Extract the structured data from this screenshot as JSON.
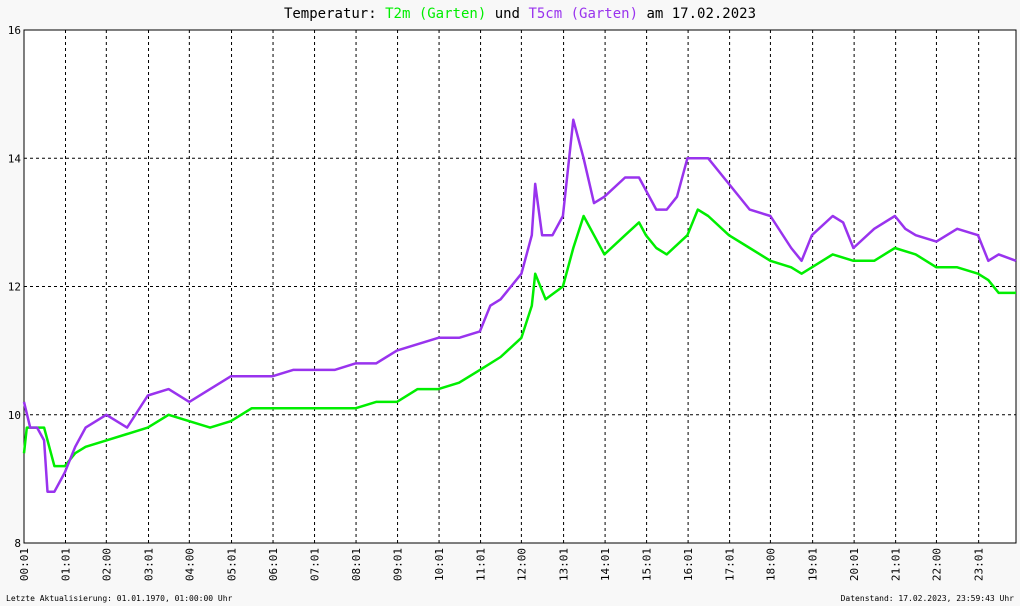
{
  "chart_data": {
    "type": "line",
    "title": [
      "Temperatur:",
      "und",
      "am 17.02.2023"
    ],
    "footer_left": "Letzte Aktualisierung: 01.01.1970, 01:00:00 Uhr",
    "footer_right": "Datenstand: 17.02.2023, 23:59:43 Uhr",
    "xlim": [
      "00:01",
      "23:55"
    ],
    "xticks": [
      "00:01",
      "01:01",
      "02:00",
      "03:01",
      "04:00",
      "05:01",
      "06:01",
      "07:01",
      "08:01",
      "09:01",
      "10:01",
      "11:01",
      "12:00",
      "13:01",
      "14:01",
      "15:01",
      "16:01",
      "17:01",
      "18:00",
      "19:01",
      "20:01",
      "21:01",
      "22:00",
      "23:01"
    ],
    "ylim": [
      8,
      16
    ],
    "yticks": [
      8,
      10,
      12,
      14,
      16
    ],
    "grid": true,
    "series": [
      {
        "name": "T2m (Garten)",
        "color": "#00ee00",
        "x": [
          "00:01",
          "00:05",
          "00:15",
          "00:30",
          "00:45",
          "01:00",
          "01:15",
          "01:30",
          "02:00",
          "02:30",
          "03:00",
          "03:30",
          "04:00",
          "04:30",
          "05:00",
          "05:30",
          "06:00",
          "06:30",
          "07:00",
          "07:30",
          "08:00",
          "08:30",
          "09:00",
          "09:30",
          "10:00",
          "10:30",
          "11:00",
          "11:30",
          "12:00",
          "12:15",
          "12:20",
          "12:35",
          "13:00",
          "13:15",
          "13:30",
          "13:45",
          "14:00",
          "14:30",
          "14:50",
          "15:00",
          "15:15",
          "15:30",
          "16:00",
          "16:15",
          "16:30",
          "17:00",
          "17:30",
          "18:00",
          "18:30",
          "18:45",
          "19:00",
          "19:30",
          "20:00",
          "20:30",
          "21:00",
          "21:30",
          "22:00",
          "22:30",
          "23:00",
          "23:15",
          "23:30",
          "23:55"
        ],
        "values": [
          9.4,
          9.8,
          9.8,
          9.8,
          9.2,
          9.2,
          9.4,
          9.5,
          9.6,
          9.7,
          9.8,
          10.0,
          9.9,
          9.8,
          9.9,
          10.1,
          10.1,
          10.1,
          10.1,
          10.1,
          10.1,
          10.2,
          10.2,
          10.4,
          10.4,
          10.5,
          10.7,
          10.9,
          11.2,
          11.7,
          12.2,
          11.8,
          12.0,
          12.6,
          13.1,
          12.8,
          12.5,
          12.8,
          13.0,
          12.8,
          12.6,
          12.5,
          12.8,
          13.2,
          13.1,
          12.8,
          12.6,
          12.4,
          12.3,
          12.2,
          12.3,
          12.5,
          12.4,
          12.4,
          12.6,
          12.5,
          12.3,
          12.3,
          12.2,
          12.1,
          11.9,
          11.9
        ]
      },
      {
        "name": "T5cm (Garten)",
        "color": "#9933ee",
        "x": [
          "00:01",
          "00:10",
          "00:20",
          "00:30",
          "00:35",
          "00:45",
          "01:00",
          "01:15",
          "01:30",
          "02:00",
          "02:30",
          "03:00",
          "03:30",
          "04:00",
          "04:30",
          "05:00",
          "05:30",
          "06:00",
          "06:30",
          "07:00",
          "07:30",
          "08:00",
          "08:30",
          "09:00",
          "09:30",
          "10:00",
          "10:30",
          "11:00",
          "11:15",
          "11:30",
          "12:00",
          "12:15",
          "12:20",
          "12:30",
          "12:45",
          "13:00",
          "13:15",
          "13:30",
          "13:45",
          "14:00",
          "14:30",
          "14:50",
          "15:00",
          "15:15",
          "15:30",
          "15:45",
          "16:00",
          "16:30",
          "17:00",
          "17:30",
          "18:00",
          "18:30",
          "18:45",
          "19:00",
          "19:30",
          "19:45",
          "20:00",
          "20:30",
          "21:00",
          "21:15",
          "21:30",
          "22:00",
          "22:30",
          "23:00",
          "23:15",
          "23:30",
          "23:55"
        ],
        "values": [
          10.2,
          9.8,
          9.8,
          9.6,
          8.8,
          8.8,
          9.1,
          9.5,
          9.8,
          10.0,
          9.8,
          10.3,
          10.4,
          10.2,
          10.4,
          10.6,
          10.6,
          10.6,
          10.7,
          10.7,
          10.7,
          10.8,
          10.8,
          11.0,
          11.1,
          11.2,
          11.2,
          11.3,
          11.7,
          11.8,
          12.2,
          12.8,
          13.6,
          12.8,
          12.8,
          13.1,
          14.6,
          14.0,
          13.3,
          13.4,
          13.7,
          13.7,
          13.5,
          13.2,
          13.2,
          13.4,
          14.0,
          14.0,
          13.6,
          13.2,
          13.1,
          12.6,
          12.4,
          12.8,
          13.1,
          13.0,
          12.6,
          12.9,
          13.1,
          12.9,
          12.8,
          12.7,
          12.9,
          12.8,
          12.4,
          12.5,
          12.4
        ]
      }
    ]
  }
}
